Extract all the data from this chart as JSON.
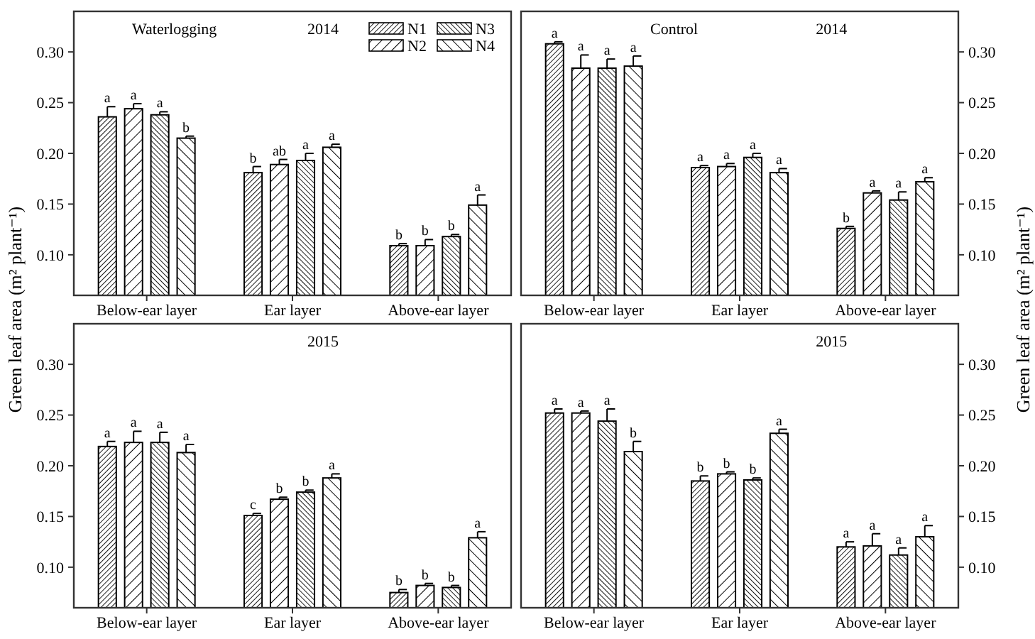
{
  "chart_data": [
    {
      "type": "bar",
      "title": "Waterlogging",
      "subtitle": "2014",
      "ylabel": "Green leaf area (m² plant⁻¹)",
      "categories": [
        "Below-ear layer",
        "Ear layer",
        "Above-ear layer"
      ],
      "ylim": [
        0.06,
        0.34
      ],
      "yticks": [
        {
          "value": 0.1,
          "label": "0.10"
        },
        {
          "value": 0.15,
          "label": "0.15"
        },
        {
          "value": 0.2,
          "label": "0.20"
        },
        {
          "value": 0.25,
          "label": "0.25"
        },
        {
          "value": 0.3,
          "label": "0.30"
        }
      ],
      "legend": "top right",
      "series": [
        {
          "name": "N1",
          "color": "#000000",
          "values": [
            0.236,
            0.181,
            0.109
          ],
          "errors": [
            0.01,
            0.006,
            0.002
          ],
          "value_labels": [
            "a",
            "b",
            "b"
          ]
        },
        {
          "name": "N2",
          "color": "#000000",
          "values": [
            0.244,
            0.189,
            0.109
          ],
          "errors": [
            0.005,
            0.005,
            0.006
          ],
          "value_labels": [
            "a",
            "ab",
            "b"
          ]
        },
        {
          "name": "N3",
          "color": "#000000",
          "values": [
            0.238,
            0.193,
            0.118
          ],
          "errors": [
            0.003,
            0.007,
            0.002
          ],
          "value_labels": [
            "a",
            "a",
            "b"
          ]
        },
        {
          "name": "N4",
          "color": "#000000",
          "values": [
            0.215,
            0.206,
            0.149
          ],
          "errors": [
            0.002,
            0.003,
            0.01
          ],
          "value_labels": [
            "b",
            "a",
            "a"
          ]
        }
      ]
    },
    {
      "type": "bar",
      "title": "Control",
      "subtitle": "2014",
      "ylabel": "Green leaf area (m² plant⁻¹)",
      "categories": [
        "Below-ear layer",
        "Ear layer",
        "Above-ear layer"
      ],
      "ylim": [
        0.06,
        0.34
      ],
      "yticks": [
        {
          "value": 0.1,
          "label": "0.10"
        },
        {
          "value": 0.15,
          "label": "0.15"
        },
        {
          "value": 0.2,
          "label": "0.20"
        },
        {
          "value": 0.25,
          "label": "0.25"
        },
        {
          "value": 0.3,
          "label": "0.30"
        }
      ],
      "series": [
        {
          "color": "#000000",
          "values": [
            0.308,
            0.186,
            0.126
          ],
          "errors": [
            0.002,
            0.002,
            0.002
          ],
          "value_labels": [
            "a",
            "a",
            "b"
          ]
        },
        {
          "color": "#000000",
          "values": [
            0.284,
            0.187,
            0.161
          ],
          "errors": [
            0.013,
            0.003,
            0.002
          ],
          "value_labels": [
            "a",
            "a",
            "a"
          ]
        },
        {
          "color": "#000000",
          "values": [
            0.284,
            0.196,
            0.154
          ],
          "errors": [
            0.009,
            0.004,
            0.008
          ],
          "value_labels": [
            "a",
            "a",
            "a"
          ]
        },
        {
          "color": "#000000",
          "values": [
            0.286,
            0.181,
            0.172
          ],
          "errors": [
            0.01,
            0.004,
            0.004
          ],
          "value_labels": [
            "a",
            "a",
            "a"
          ]
        }
      ]
    },
    {
      "type": "bar",
      "subtitle": "2015",
      "categories": [
        "Below-ear layer",
        "Ear layer",
        "Above-ear layer"
      ],
      "ylim": [
        0.06,
        0.34
      ],
      "yticks": [
        {
          "value": 0.1,
          "label": "0.10"
        },
        {
          "value": 0.15,
          "label": "0.15"
        },
        {
          "value": 0.2,
          "label": "0.20"
        },
        {
          "value": 0.25,
          "label": "0.25"
        },
        {
          "value": 0.3,
          "label": "0.30"
        }
      ],
      "series": [
        {
          "color": "#000000",
          "values": [
            0.219,
            0.151,
            0.075
          ],
          "errors": [
            0.005,
            0.002,
            0.003
          ],
          "value_labels": [
            "a",
            "c",
            "b"
          ]
        },
        {
          "color": "#000000",
          "values": [
            0.223,
            0.167,
            0.082
          ],
          "errors": [
            0.011,
            0.002,
            0.002
          ],
          "value_labels": [
            "a",
            "b",
            "b"
          ]
        },
        {
          "color": "#000000",
          "values": [
            0.223,
            0.174,
            0.08
          ],
          "errors": [
            0.01,
            0.002,
            0.002
          ],
          "value_labels": [
            "a",
            "b",
            "b"
          ]
        },
        {
          "color": "#000000",
          "values": [
            0.213,
            0.188,
            0.129
          ],
          "errors": [
            0.008,
            0.004,
            0.006
          ],
          "value_labels": [
            "a",
            "a",
            "a"
          ]
        }
      ]
    },
    {
      "type": "bar",
      "subtitle": "2015",
      "categories": [
        "Below-ear layer",
        "Ear layer",
        "Above-ear layer"
      ],
      "ylim": [
        0.06,
        0.34
      ],
      "yticks": [
        {
          "value": 0.1,
          "label": "0.10"
        },
        {
          "value": 0.15,
          "label": "0.15"
        },
        {
          "value": 0.2,
          "label": "0.20"
        },
        {
          "value": 0.25,
          "label": "0.25"
        },
        {
          "value": 0.3,
          "label": "0.30"
        }
      ],
      "series": [
        {
          "color": "#000000",
          "values": [
            0.252,
            0.185,
            0.12
          ],
          "errors": [
            0.004,
            0.005,
            0.005
          ],
          "value_labels": [
            "a",
            "b",
            "a"
          ]
        },
        {
          "color": "#000000",
          "values": [
            0.252,
            0.192,
            0.121
          ],
          "errors": [
            0.002,
            0.002,
            0.012
          ],
          "value_labels": [
            "a",
            "b",
            "a"
          ]
        },
        {
          "color": "#000000",
          "values": [
            0.244,
            0.186,
            0.112
          ],
          "errors": [
            0.012,
            0.002,
            0.007
          ],
          "value_labels": [
            "a",
            "b",
            "a"
          ]
        },
        {
          "color": "#000000",
          "values": [
            0.214,
            0.232,
            0.13
          ],
          "errors": [
            0.01,
            0.004,
            0.011
          ],
          "value_labels": [
            "b",
            "a",
            "a"
          ]
        }
      ]
    }
  ]
}
